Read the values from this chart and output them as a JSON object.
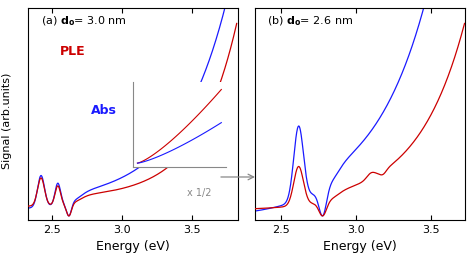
{
  "xlabel": "Energy (eV)",
  "ylabel": "Signal (arb.units)",
  "abs_color": "#1a1aff",
  "ple_color": "#cc0000",
  "background_color": "#ffffff",
  "inset_label": "x 1/2",
  "panel_a_label": "(a)",
  "panel_a_size": "d",
  "panel_a_size_val": "o",
  "panel_a_title": "d$_\\mathregular{o}$= 3.0 nm",
  "panel_b_title": "d$_\\mathregular{o}$= 2.6 nm"
}
